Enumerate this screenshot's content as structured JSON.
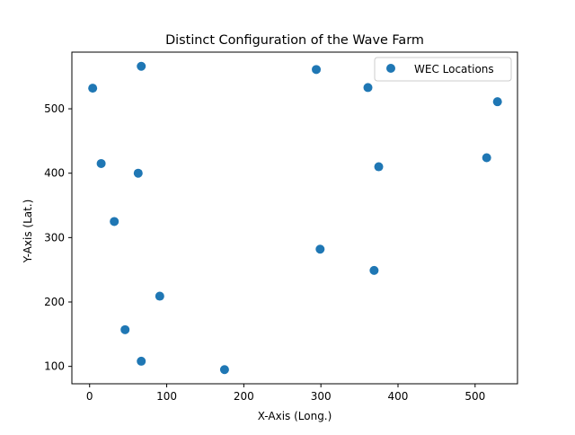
{
  "chart_data": {
    "type": "scatter",
    "title": "Distinct Configuration of the Wave Farm",
    "xlabel": "X-Axis (Long.)",
    "ylabel": "Y-Axis (Lat.)",
    "xlim": [
      -23,
      555
    ],
    "ylim": [
      73,
      588
    ],
    "xticks": [
      0,
      100,
      200,
      300,
      400,
      500
    ],
    "yticks": [
      100,
      200,
      300,
      400,
      500
    ],
    "grid": false,
    "legend": {
      "position": "top-right"
    },
    "series": [
      {
        "name": "WEC Locations",
        "color": "#1f77b4",
        "marker": "circle",
        "points": [
          {
            "x": 67,
            "y": 566
          },
          {
            "x": 294,
            "y": 561
          },
          {
            "x": 4,
            "y": 532
          },
          {
            "x": 361,
            "y": 533
          },
          {
            "x": 529,
            "y": 511
          },
          {
            "x": 515,
            "y": 424
          },
          {
            "x": 15,
            "y": 415
          },
          {
            "x": 375,
            "y": 410
          },
          {
            "x": 63,
            "y": 400
          },
          {
            "x": 32,
            "y": 325
          },
          {
            "x": 299,
            "y": 282
          },
          {
            "x": 369,
            "y": 249
          },
          {
            "x": 91,
            "y": 209
          },
          {
            "x": 46,
            "y": 157
          },
          {
            "x": 67,
            "y": 108
          },
          {
            "x": 175,
            "y": 95
          }
        ]
      }
    ]
  }
}
